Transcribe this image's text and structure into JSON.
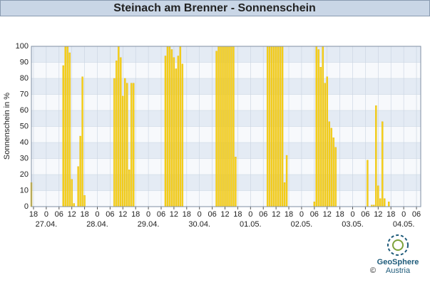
{
  "chart_data": {
    "type": "bar",
    "title": "Steinach am Brenner - Sonnenschein",
    "y_label": "Sonnenschein in %",
    "x": [
      17,
      32,
      33,
      34,
      35,
      36,
      37,
      39,
      40,
      41,
      42,
      56,
      57,
      58,
      59,
      60,
      61,
      62,
      63,
      64,
      65,
      80,
      81,
      82,
      83,
      84,
      85,
      86,
      87,
      88,
      104,
      105,
      106,
      107,
      108,
      109,
      110,
      111,
      112,
      113,
      128,
      129,
      130,
      131,
      132,
      133,
      134,
      135,
      136,
      137,
      150,
      151,
      152,
      153,
      154,
      155,
      156,
      157,
      158,
      159,
      160,
      175,
      177,
      178,
      179,
      180,
      181,
      182,
      183,
      185
    ],
    "values": [
      15,
      88,
      100,
      100,
      96,
      17,
      2,
      25,
      44,
      81,
      7,
      80,
      91,
      100,
      93,
      69,
      80,
      77,
      23,
      77,
      77,
      94,
      100,
      100,
      98,
      93,
      86,
      94,
      100,
      89,
      97,
      100,
      100,
      100,
      100,
      100,
      100,
      100,
      100,
      31,
      100,
      100,
      100,
      100,
      100,
      100,
      100,
      100,
      15,
      32,
      3,
      100,
      98,
      87,
      100,
      77,
      81,
      53,
      49,
      43,
      37,
      29,
      1,
      1,
      63,
      13,
      5,
      53,
      5,
      3
    ],
    "color": "#f7d21b",
    "xlim": [
      17,
      200
    ],
    "ylim": [
      0,
      100
    ],
    "yticks": [
      0,
      10,
      20,
      30,
      40,
      50,
      60,
      70,
      80,
      90,
      100
    ],
    "xticks": [
      {
        "value": 18,
        "label": "18"
      },
      {
        "value": 24,
        "label": "0"
      },
      {
        "value": 30,
        "label": "06"
      },
      {
        "value": 36,
        "label": "12"
      },
      {
        "value": 42,
        "label": "18"
      },
      {
        "value": 48,
        "label": "0"
      },
      {
        "value": 54,
        "label": "06"
      },
      {
        "value": 60,
        "label": "12"
      },
      {
        "value": 66,
        "label": "18"
      },
      {
        "value": 72,
        "label": "0"
      },
      {
        "value": 78,
        "label": "06"
      },
      {
        "value": 84,
        "label": "12"
      },
      {
        "value": 90,
        "label": "18"
      },
      {
        "value": 96,
        "label": "0"
      },
      {
        "value": 102,
        "label": "06"
      },
      {
        "value": 108,
        "label": "12"
      },
      {
        "value": 114,
        "label": "18"
      },
      {
        "value": 120,
        "label": "0"
      },
      {
        "value": 126,
        "label": "06"
      },
      {
        "value": 132,
        "label": "12"
      },
      {
        "value": 138,
        "label": "18"
      },
      {
        "value": 144,
        "label": "0"
      },
      {
        "value": 150,
        "label": "06"
      },
      {
        "value": 156,
        "label": "12"
      },
      {
        "value": 162,
        "label": "18"
      },
      {
        "value": 168,
        "label": "0"
      },
      {
        "value": 174,
        "label": "06"
      },
      {
        "value": 180,
        "label": "12"
      },
      {
        "value": 186,
        "label": "18"
      },
      {
        "value": 192,
        "label": "0"
      },
      {
        "value": 198,
        "label": "06"
      }
    ],
    "dates": [
      {
        "value": 24,
        "label": "27.04."
      },
      {
        "value": 48,
        "label": "28.04."
      },
      {
        "value": 72,
        "label": "29.04."
      },
      {
        "value": 96,
        "label": "30.04."
      },
      {
        "value": 120,
        "label": "01.05."
      },
      {
        "value": 144,
        "label": "02.05."
      },
      {
        "value": 168,
        "label": "03.05."
      },
      {
        "value": 192,
        "label": "04.05."
      }
    ],
    "grid": true,
    "banded_background": true
  },
  "footer": {
    "logo_name": "GeoSphere",
    "logo_sub": "Austria",
    "copyright": "©"
  }
}
